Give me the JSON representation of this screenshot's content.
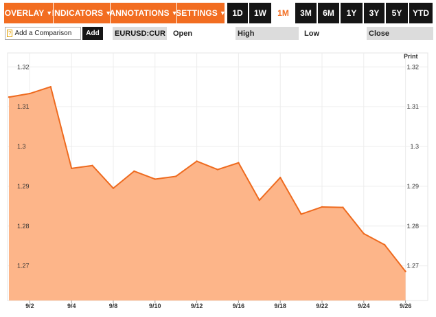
{
  "toolbar": {
    "menus": [
      {
        "label": "OVERLAY",
        "name": "overlay-menu-button"
      },
      {
        "label": "INDICATORS",
        "name": "indicators-menu-button"
      },
      {
        "label": "ANNOTATIONS",
        "name": "annotations-menu-button"
      },
      {
        "label": "SETTINGS",
        "name": "settings-menu-button"
      }
    ],
    "ranges": [
      "1D",
      "1W",
      "1M",
      "3M",
      "6M",
      "1Y",
      "3Y",
      "5Y",
      "YTD"
    ],
    "active_range": "1M"
  },
  "comparison": {
    "help_glyph": "?",
    "placeholder": "Add a Comparison",
    "add_label": "Add"
  },
  "ticker": "EURUSD:CUR",
  "stats": {
    "open_label": "Open",
    "high_label": "High",
    "low_label": "Low",
    "close_label": "Close"
  },
  "print_label": "Print",
  "colors": {
    "accent": "#f26d21",
    "area_fill": "#fdb589",
    "line": "#ee6a1e",
    "dark": "#151515"
  },
  "chart_data": {
    "type": "area",
    "x": [
      "9/1",
      "9/2",
      "9/3",
      "9/4",
      "9/5",
      "9/8",
      "9/9",
      "9/10",
      "9/11",
      "9/12",
      "9/15",
      "9/16",
      "9/17",
      "9/18",
      "9/19",
      "9/22",
      "9/23",
      "9/24",
      "9/25",
      "9/26"
    ],
    "values": [
      1.3124,
      1.3133,
      1.315,
      1.2945,
      1.2952,
      1.2895,
      1.2938,
      1.2918,
      1.2925,
      1.2963,
      1.2942,
      1.2959,
      1.2865,
      1.2922,
      1.283,
      1.2848,
      1.2847,
      1.2781,
      1.2753,
      1.2686
    ],
    "x_tick_labels": [
      "9/2",
      "9/4",
      "9/8",
      "9/10",
      "9/12",
      "9/16",
      "9/18",
      "9/22",
      "9/24",
      "9/26"
    ],
    "y_tick_labels": [
      "1.32",
      "1.31",
      "1.3",
      "1.29",
      "1.28",
      "1.27"
    ],
    "y_ticks": [
      1.32,
      1.31,
      1.3,
      1.29,
      1.28,
      1.27
    ],
    "ylim": [
      1.2613,
      1.3235
    ],
    "grid": true
  }
}
